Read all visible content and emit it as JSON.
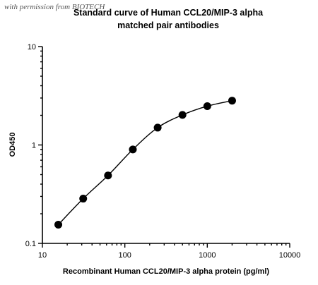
{
  "watermark": "with permission from BIOTECH",
  "chart_data": {
    "type": "scatter",
    "title": "Standard curve of Human CCL20/MIP-3 alpha",
    "subtitle": "matched pair antibodies",
    "xlabel": "Recombinant Human CCL20/MIP-3 alpha protein (pg/ml)",
    "ylabel": "OD450",
    "xscale": "log",
    "yscale": "log",
    "xlim": [
      10,
      10000
    ],
    "ylim": [
      0.1,
      10
    ],
    "x_ticks": [
      "10",
      "100",
      "1000",
      "10000"
    ],
    "y_ticks": [
      "0.1",
      "1",
      "10"
    ],
    "grid": false,
    "legend": "none",
    "series": [
      {
        "x": [
          15.6,
          31.25,
          62.5,
          125,
          250,
          500,
          1000,
          2000
        ],
        "y": [
          0.155,
          0.285,
          0.49,
          0.9,
          1.5,
          2.02,
          2.48,
          2.82
        ]
      }
    ],
    "fit": "4PL curve through points"
  },
  "colors": {
    "points": "#000000",
    "line": "#000000",
    "text": "#000000"
  }
}
